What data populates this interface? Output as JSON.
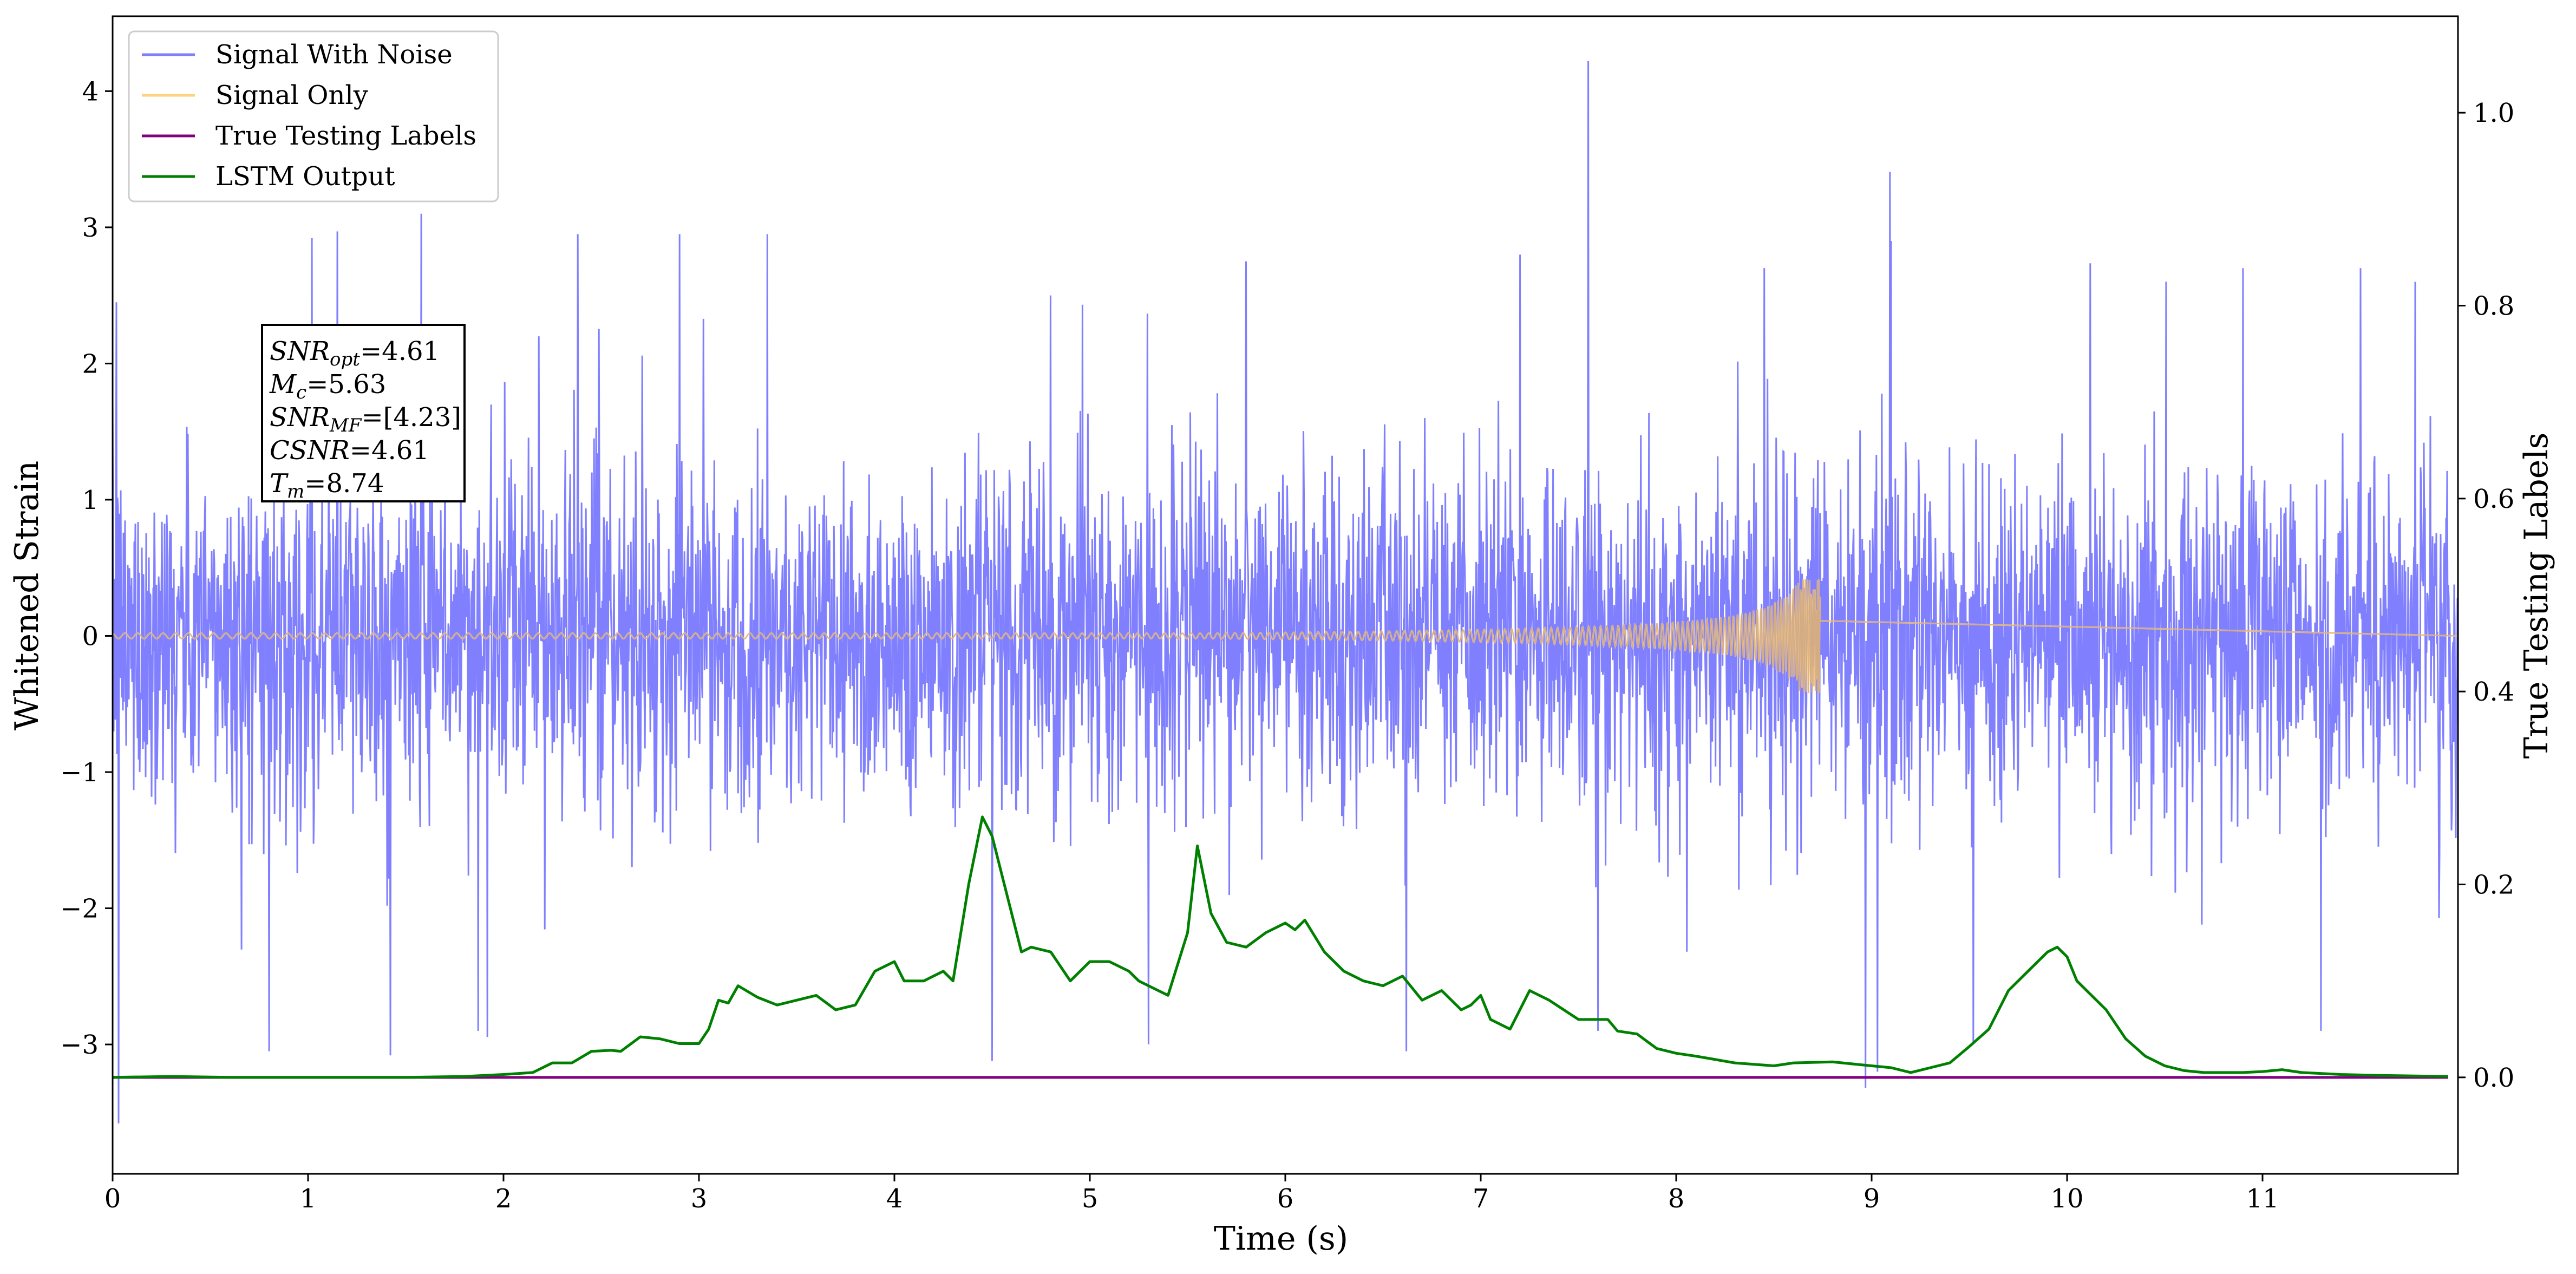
{
  "chart_data": {
    "type": "line",
    "xlabel": "Time (s)",
    "ylabel": "Whitened Strain",
    "y2label": "True Testing Labels",
    "xlim": [
      0,
      12
    ],
    "ylim": [
      -3.95,
      4.55
    ],
    "y2lim": [
      -0.1,
      1.1
    ],
    "x_ticks": [
      0,
      1,
      2,
      3,
      4,
      5,
      6,
      7,
      8,
      9,
      10,
      11
    ],
    "y_ticks": [
      -3,
      -2,
      -1,
      0,
      1,
      2,
      3,
      4
    ],
    "y2_ticks": [
      0.0,
      0.2,
      0.4,
      0.6,
      0.8,
      1.0
    ],
    "y_tick_labels": [
      "−3",
      "−2",
      "−1",
      "0",
      "1",
      "2",
      "3",
      "4"
    ],
    "y2_tick_labels": [
      "0.0",
      "0.2",
      "0.4",
      "0.6",
      "0.8",
      "1.0"
    ],
    "legend": {
      "placement": "top-left",
      "entries": [
        "Signal With Noise",
        "Signal Only",
        "True Testing Labels",
        "LSTM Output"
      ]
    },
    "series": [
      {
        "name": "Signal With Noise",
        "axis": "left",
        "color": "#8080ff",
        "description_of_envelope": "noise",
        "noise_std": 0.62,
        "spikes": [
          {
            "x": 0.03,
            "y": -3.58
          },
          {
            "x": 0.02,
            "y": 2.45
          },
          {
            "x": 0.8,
            "y": -3.05
          },
          {
            "x": 1.02,
            "y": 2.92
          },
          {
            "x": 1.15,
            "y": 2.97
          },
          {
            "x": 1.42,
            "y": -3.08
          },
          {
            "x": 1.58,
            "y": 3.1
          },
          {
            "x": 1.87,
            "y": -2.9
          },
          {
            "x": 2.18,
            "y": 2.2
          },
          {
            "x": 2.38,
            "y": 2.95
          },
          {
            "x": 2.9,
            "y": 2.95
          },
          {
            "x": 3.35,
            "y": 2.95
          },
          {
            "x": 4.5,
            "y": -3.12
          },
          {
            "x": 4.8,
            "y": 2.5
          },
          {
            "x": 5.3,
            "y": -3.0
          },
          {
            "x": 5.8,
            "y": 2.75
          },
          {
            "x": 6.62,
            "y": -3.05
          },
          {
            "x": 7.2,
            "y": 2.8
          },
          {
            "x": 7.55,
            "y": 4.22
          },
          {
            "x": 7.6,
            "y": -2.9
          },
          {
            "x": 8.45,
            "y": 2.7
          },
          {
            "x": 8.97,
            "y": -3.32
          },
          {
            "x": 9.03,
            "y": -3.2
          },
          {
            "x": 9.1,
            "y": 2.9
          },
          {
            "x": 9.52,
            "y": -3.0
          },
          {
            "x": 10.9,
            "y": 2.7
          },
          {
            "x": 11.5,
            "y": 2.7
          },
          {
            "x": 11.3,
            "y": -2.9
          },
          {
            "x": 11.78,
            "y": 2.6
          }
        ]
      },
      {
        "name": "Signal Only",
        "axis": "left",
        "color": "#ffd27f",
        "chirp": {
          "start": 0.0,
          "merger": 8.74,
          "peak_amplitude": 0.42,
          "base_amplitude": 0.02
        }
      },
      {
        "name": "True Testing Labels",
        "axis": "right",
        "color": "#800080",
        "x": [
          0,
          11.95
        ],
        "y": [
          0.0,
          0.0
        ]
      },
      {
        "name": "LSTM Output",
        "axis": "right",
        "color": "#008000",
        "x": [
          0.0,
          0.3,
          0.6,
          1.0,
          1.5,
          1.8,
          2.0,
          2.15,
          2.25,
          2.35,
          2.45,
          2.55,
          2.6,
          2.7,
          2.8,
          2.9,
          3.0,
          3.05,
          3.1,
          3.15,
          3.2,
          3.3,
          3.4,
          3.5,
          3.6,
          3.7,
          3.8,
          3.9,
          4.0,
          4.05,
          4.15,
          4.25,
          4.3,
          4.38,
          4.45,
          4.5,
          4.55,
          4.65,
          4.7,
          4.8,
          4.9,
          5.0,
          5.1,
          5.2,
          5.25,
          5.3,
          5.4,
          5.5,
          5.55,
          5.62,
          5.7,
          5.8,
          5.9,
          6.0,
          6.05,
          6.1,
          6.2,
          6.3,
          6.4,
          6.5,
          6.6,
          6.7,
          6.8,
          6.9,
          6.95,
          7.0,
          7.05,
          7.15,
          7.25,
          7.35,
          7.5,
          7.6,
          7.65,
          7.7,
          7.8,
          7.9,
          8.0,
          8.1,
          8.3,
          8.5,
          8.6,
          8.8,
          9.0,
          9.1,
          9.2,
          9.3,
          9.4,
          9.5,
          9.6,
          9.7,
          9.8,
          9.9,
          9.95,
          10.0,
          10.05,
          10.1,
          10.2,
          10.3,
          10.4,
          10.5,
          10.6,
          10.7,
          10.8,
          10.9,
          11.0,
          11.1,
          11.2,
          11.4,
          11.6,
          11.95
        ],
        "y": [
          0.0,
          0.001,
          0.0,
          0.0,
          0.0,
          0.001,
          0.003,
          0.005,
          0.015,
          0.015,
          0.027,
          0.028,
          0.027,
          0.042,
          0.04,
          0.035,
          0.035,
          0.05,
          0.08,
          0.077,
          0.095,
          0.083,
          0.075,
          0.08,
          0.085,
          0.07,
          0.075,
          0.11,
          0.12,
          0.1,
          0.1,
          0.11,
          0.1,
          0.2,
          0.27,
          0.25,
          0.21,
          0.13,
          0.135,
          0.13,
          0.1,
          0.12,
          0.12,
          0.11,
          0.1,
          0.095,
          0.085,
          0.15,
          0.24,
          0.17,
          0.14,
          0.135,
          0.15,
          0.16,
          0.153,
          0.163,
          0.13,
          0.11,
          0.1,
          0.095,
          0.105,
          0.08,
          0.09,
          0.07,
          0.075,
          0.085,
          0.06,
          0.05,
          0.09,
          0.08,
          0.06,
          0.06,
          0.06,
          0.048,
          0.045,
          0.03,
          0.025,
          0.022,
          0.015,
          0.012,
          0.015,
          0.016,
          0.012,
          0.01,
          0.005,
          0.01,
          0.015,
          0.032,
          0.05,
          0.09,
          0.11,
          0.13,
          0.135,
          0.125,
          0.1,
          0.09,
          0.07,
          0.04,
          0.022,
          0.012,
          0.007,
          0.005,
          0.005,
          0.005,
          0.006,
          0.008,
          0.005,
          0.003,
          0.002,
          0.001
        ]
      }
    ]
  },
  "annotation": {
    "lines": [
      {
        "sym": "SNR",
        "sub": "opt",
        "val": "=4.61"
      },
      {
        "sym": "M",
        "sub": "c",
        "val": "=5.63"
      },
      {
        "sym": "SNR",
        "sub": "MF",
        "val": "=[4.23]"
      },
      {
        "sym": "CSNR",
        "sub": "",
        "val": "=4.61"
      },
      {
        "sym": "T",
        "sub": "m",
        "val": "=8.74"
      }
    ]
  }
}
